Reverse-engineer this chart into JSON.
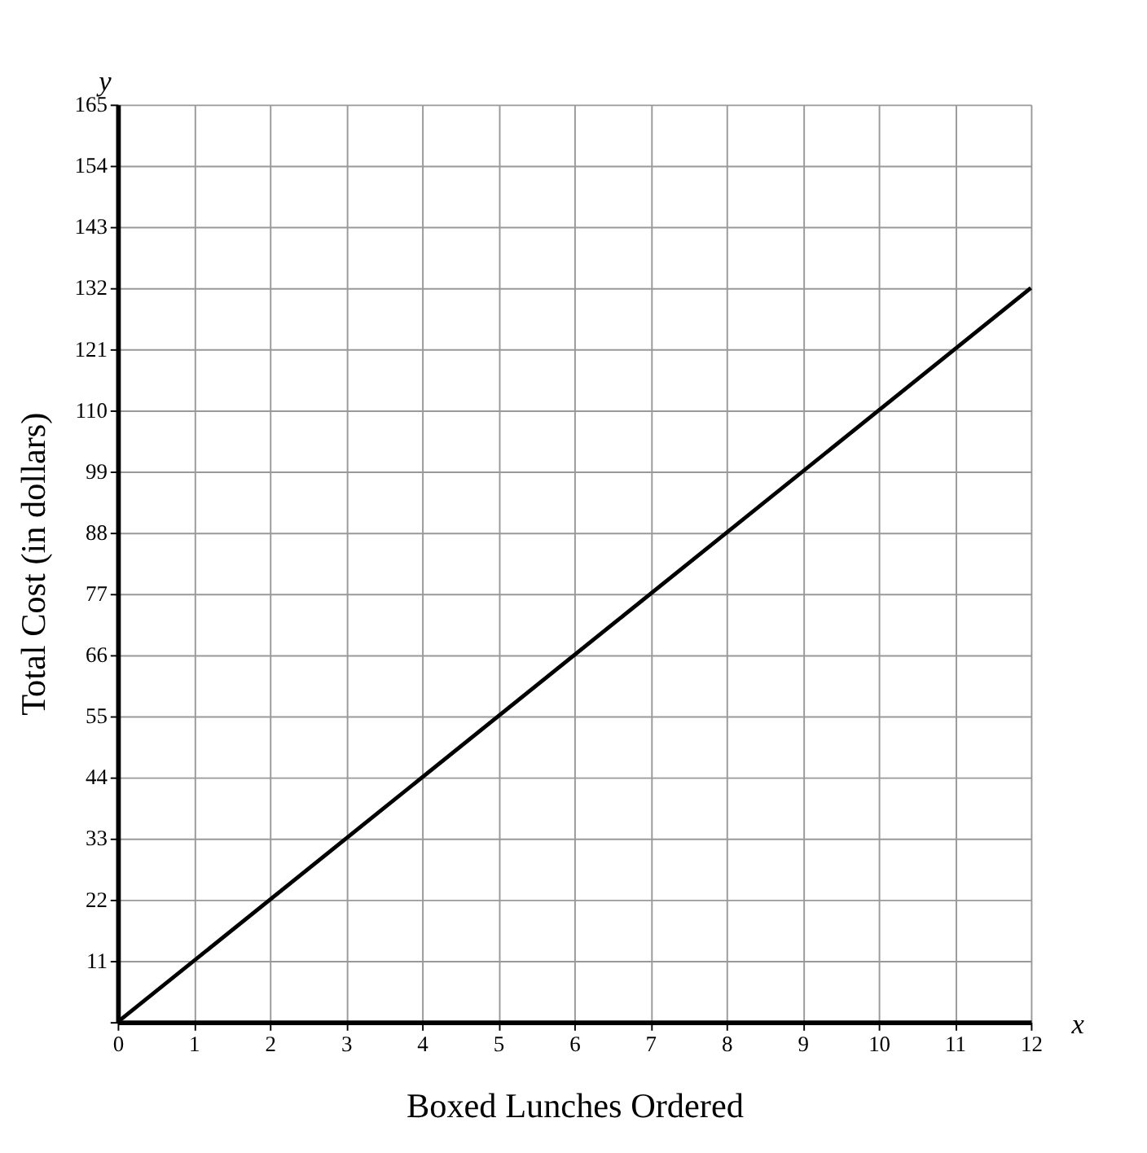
{
  "chart_data": {
    "type": "line",
    "xlabel": "Boxed Lunches Ordered",
    "ylabel": "Total Cost (in dollars)",
    "x": [
      0,
      12
    ],
    "series": [
      {
        "color": "#000000",
        "values": [
          0,
          132
        ]
      }
    ],
    "xlim": [
      0,
      12
    ],
    "ylim": [
      0,
      165
    ],
    "xticks": [
      0,
      1,
      2,
      3,
      4,
      5,
      6,
      7,
      8,
      9,
      10,
      11,
      12
    ],
    "yticks": [
      {
        "value": 0,
        "label": null
      },
      11,
      22,
      33,
      44,
      55,
      66,
      77,
      88,
      99,
      110,
      121,
      132,
      143,
      154,
      165
    ],
    "grid": true,
    "marker": "none",
    "line_style": "solid",
    "annotations": [
      "x",
      "y"
    ]
  }
}
